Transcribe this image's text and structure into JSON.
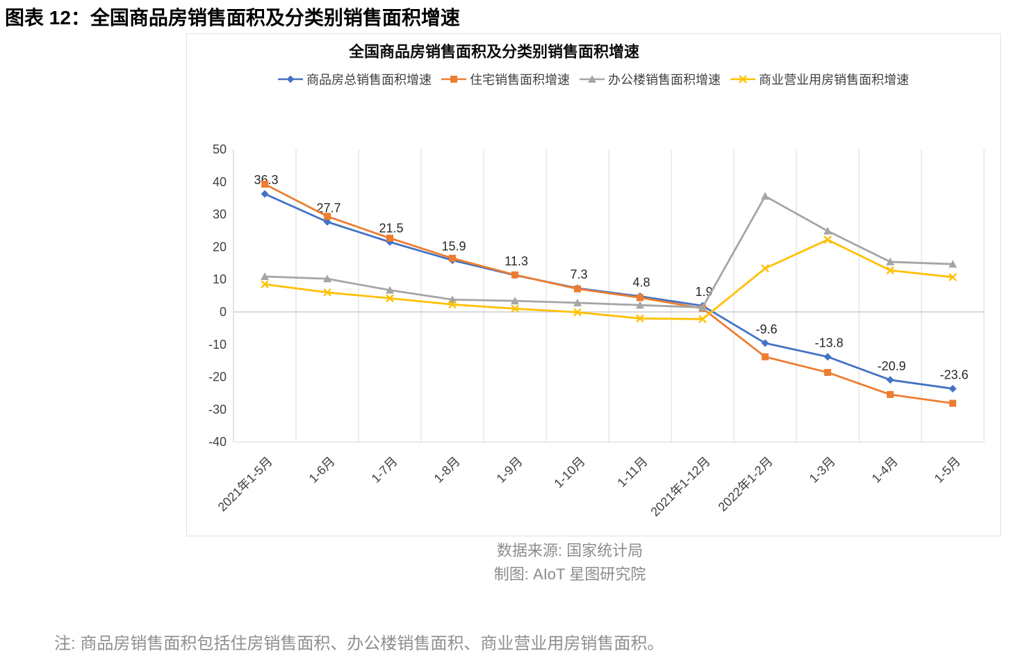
{
  "page": {
    "header": "图表 12：全国商品房销售面积及分类别销售面积增速",
    "source_line1": "数据来源: 国家统计局",
    "source_line2": "制图: AIoT 星图研究院",
    "note": "注: 商品房销售面积包括住房销售面积、办公楼销售面积、商业营业用房销售面积。"
  },
  "chart_data": {
    "type": "line",
    "title": "全国商品房销售面积及分类别销售面积增速",
    "categories": [
      "2021年1-5月",
      "1-6月",
      "1-7月",
      "1-8月",
      "1-9月",
      "1-10月",
      "1-11月",
      "2021年1-12月",
      "2022年1-2月",
      "1-3月",
      "1-4月",
      "1-5月"
    ],
    "series": [
      {
        "name": "商品房总销售面积增速",
        "color": "#4472C4",
        "marker": "diamond",
        "data_labels": true,
        "values": [
          36.3,
          27.7,
          21.5,
          15.9,
          11.3,
          7.3,
          4.8,
          1.9,
          -9.6,
          -13.8,
          -20.9,
          -23.6
        ]
      },
      {
        "name": "住宅销售面积增速",
        "color": "#ED7D31",
        "marker": "square",
        "data_labels": false,
        "values": [
          39.3,
          29.4,
          22.7,
          16.5,
          11.4,
          7.1,
          4.4,
          1.1,
          -13.8,
          -18.6,
          -25.4,
          -28.1
        ]
      },
      {
        "name": "办公楼销售面积增速",
        "color": "#A5A5A5",
        "marker": "triangle",
        "data_labels": false,
        "values": [
          10.9,
          10.2,
          6.7,
          3.8,
          3.4,
          2.8,
          2.1,
          1.4,
          35.6,
          24.9,
          15.4,
          14.7
        ]
      },
      {
        "name": "商业营业用房销售面积增速",
        "color": "#FFC000",
        "marker": "x",
        "data_labels": false,
        "values": [
          8.5,
          6.0,
          4.2,
          2.3,
          1.0,
          -0.1,
          -2.0,
          -2.2,
          13.4,
          22.2,
          12.8,
          10.7
        ]
      }
    ],
    "ylim": [
      -40,
      50
    ],
    "ytick_step": 10,
    "yticks": [
      "50",
      "40",
      "30",
      "20",
      "10",
      "0",
      "-10",
      "-20",
      "-30",
      "-40"
    ],
    "grid": "vertical-only",
    "legend_position": "top",
    "colors": {
      "gridline": "#d9d9d9",
      "zero_line": "#c3c3c3",
      "axis_line": "#d0d0d0",
      "axis_text": "#404040",
      "data_label_text": "#262626"
    }
  }
}
